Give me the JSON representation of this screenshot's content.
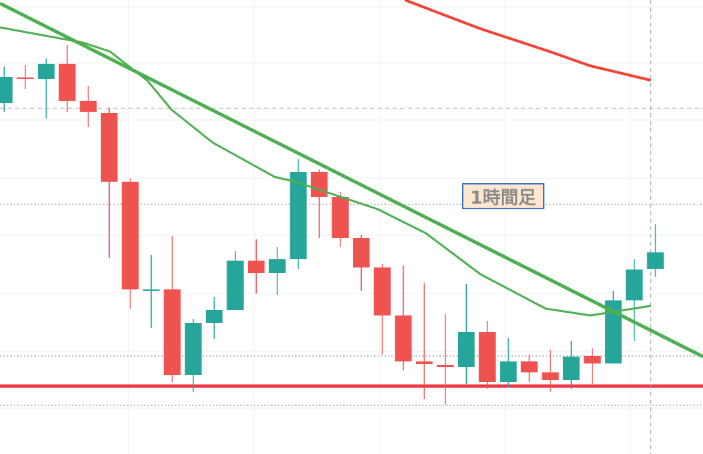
{
  "chart_data": {
    "type": "candlestick",
    "annotation": "1時間足",
    "xlim": [
      -0.2,
      33.27
    ],
    "ylim": [
      0,
      662
    ],
    "grid": true,
    "xticks": [
      5.92,
      11.9,
      17.88,
      23.86,
      29.8
    ],
    "yticks": [
      67,
      150,
      234,
      319,
      402,
      487,
      570,
      652
    ],
    "up_color": "#26a69a",
    "down_color": "#ef5350",
    "open": [
      512,
      549,
      547,
      569,
      515,
      497,
      397,
      239,
      240,
      115,
      191,
      210,
      282,
      264,
      284,
      411,
      375,
      315,
      272,
      202,
      135,
      130,
      127,
      178,
      105,
      135,
      119,
      108,
      143,
      132,
      224,
      270
    ],
    "high": [
      565,
      567,
      577,
      596,
      537,
      505,
      402,
      290,
      318,
      197,
      229,
      296,
      313,
      302,
      430,
      415,
      382,
      319,
      277,
      275,
      249,
      204,
      248,
      194,
      169,
      145,
      152,
      165,
      154,
      238,
      284,
      335
    ],
    "low": [
      499,
      532,
      489,
      499,
      477,
      286,
      212,
      184,
      105,
      90,
      168,
      210,
      234,
      232,
      270,
      315,
      302,
      238,
      145,
      122,
      80,
      72,
      102,
      95,
      97,
      105,
      91,
      95,
      102,
      132,
      165,
      258
    ],
    "close": [
      550,
      547,
      569,
      515,
      499,
      397,
      240,
      240,
      115,
      191,
      210,
      282,
      264,
      284,
      411,
      375,
      315,
      272,
      202,
      135,
      131,
      127,
      178,
      105,
      135,
      119,
      108,
      142,
      132,
      224,
      269,
      294
    ],
    "lines": [
      {
        "color": "#f04438",
        "width": 4,
        "x": [
          19.08,
          22.68,
          25.95,
          27.9,
          30.78
        ],
        "values": [
          662,
          620,
          587,
          566,
          545
        ]
      },
      {
        "color": "#4caf50",
        "width": 5,
        "x": [
          -0.2,
          33.27
        ],
        "values": [
          657,
          142
        ]
      },
      {
        "color": "#4caf50",
        "width": 3,
        "x": [
          -0.2,
          3.73,
          5.03,
          6.83,
          7.97,
          9.93,
          12.88,
          13.86,
          17.78,
          20.07,
          22.68,
          25.78,
          27.91,
          30.78
        ],
        "values": [
          622,
          600,
          587,
          544,
          502,
          454,
          404,
          397,
          357,
          322,
          262,
          212,
          202,
          216
        ]
      }
    ],
    "hlines": [
      {
        "value": 99,
        "color": "#f23645",
        "style": "solid"
      },
      {
        "value": 504,
        "color": "#9e9e9e",
        "style": "dashed"
      },
      {
        "value": 364,
        "color": "#757575",
        "style": "dotted"
      },
      {
        "value": 143,
        "color": "#757575",
        "style": "dotted"
      },
      {
        "value": 71,
        "color": "#757575",
        "style": "dotted"
      }
    ],
    "vline": 30.78
  }
}
